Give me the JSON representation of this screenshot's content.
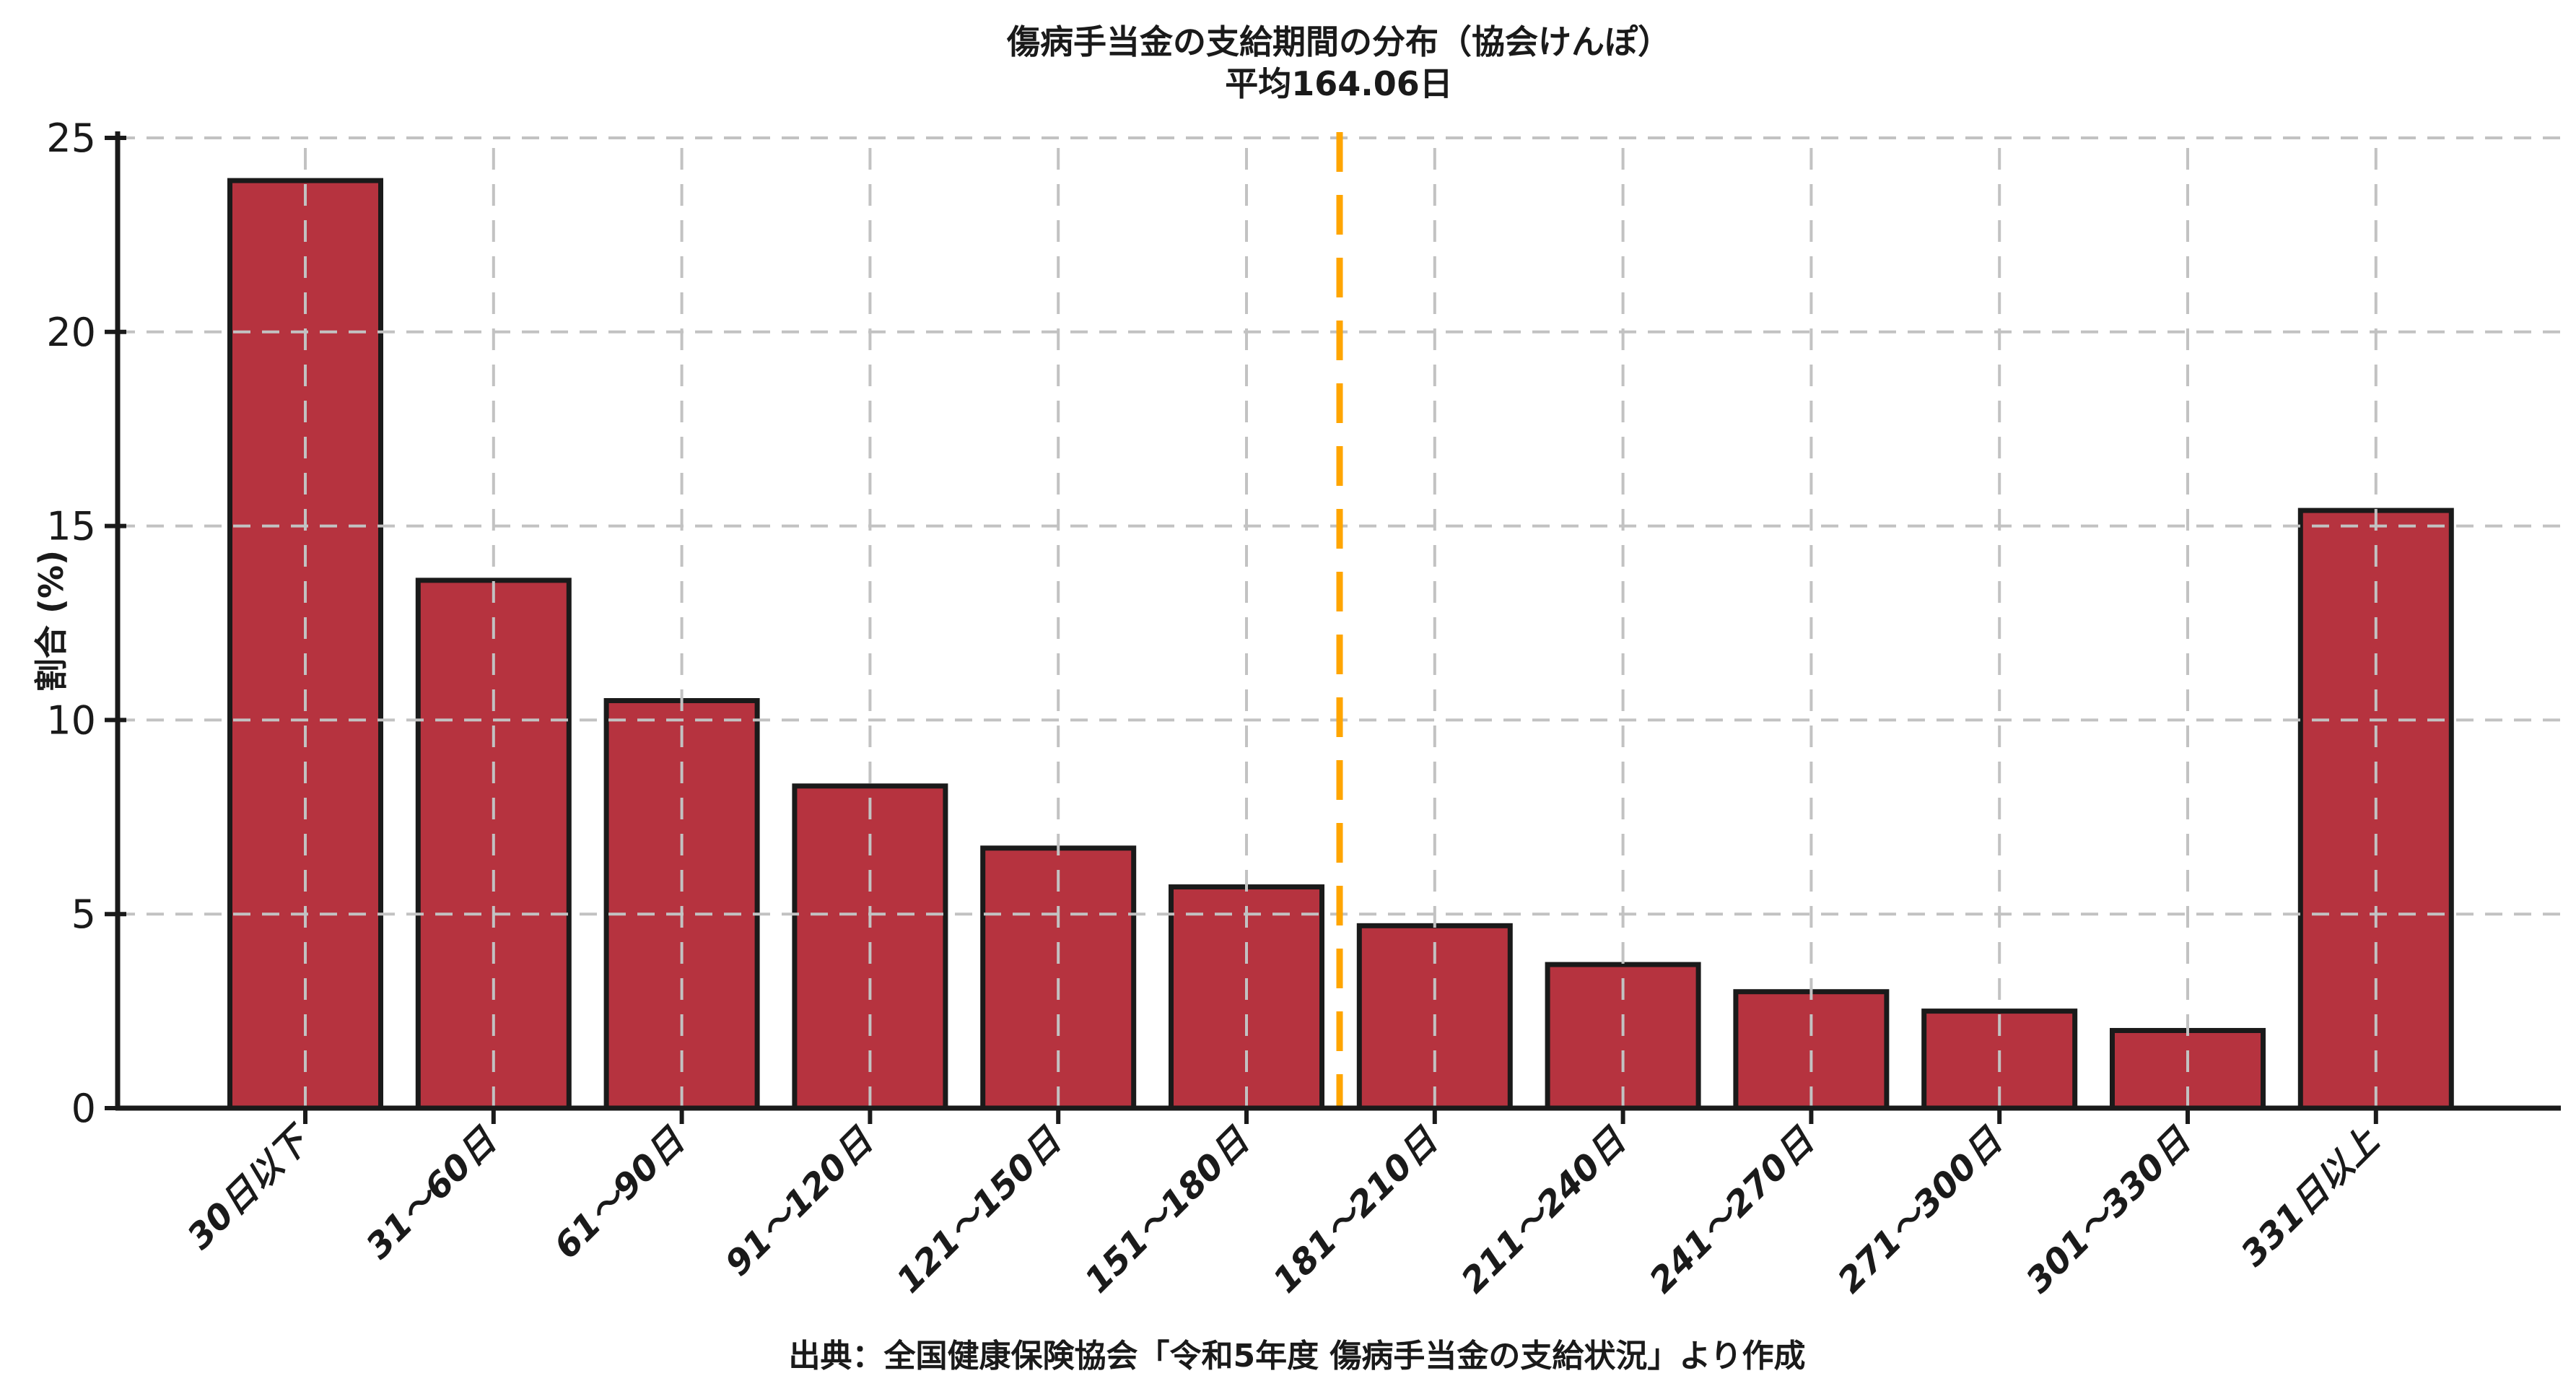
{
  "chart_data": {
    "type": "bar",
    "title": "傷病手当金の支給期間の分布（協会けんぽ）",
    "subtitle": "平均164.06日",
    "mean_days": 164.06,
    "ylabel": "割合 (%)",
    "xlabel": "",
    "categories": [
      "30日以下",
      "31～60日",
      "61～90日",
      "91～120日",
      "121～150日",
      "151～180日",
      "181～210日",
      "211～240日",
      "241～270日",
      "271～300日",
      "301～330日",
      "331日以上"
    ],
    "values": [
      23.9,
      13.6,
      10.5,
      8.3,
      6.7,
      5.7,
      4.7,
      3.7,
      3.0,
      2.5,
      2.0,
      15.4
    ],
    "yticks": [
      0,
      5,
      10,
      15,
      20,
      25
    ],
    "ylim": [
      0,
      25
    ],
    "grid": true,
    "legend": "none",
    "bar_color": "#B6333F",
    "bar_edge_color": "#1A1A1A",
    "grid_color": "#C2C2C2",
    "mean_line_color": "#FFA500",
    "text_color": "#1A1A1A",
    "source": "出典：全国健康保険協会「令和5年度 傷病手当金の支給状況」より作成"
  }
}
